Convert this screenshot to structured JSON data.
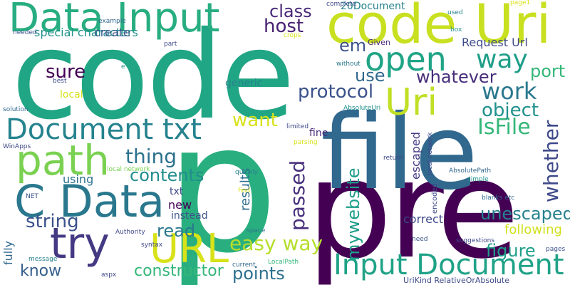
{
  "words": [
    {
      "text": "code",
      "color": "#21a685"
    },
    {
      "text": "p",
      "color": "#29af7f"
    },
    {
      "text": "pre",
      "color": "#440154"
    },
    {
      "text": "file",
      "color": "#31688e"
    },
    {
      "text": "code Uri",
      "color": "#c8e020"
    },
    {
      "text": "Data Input",
      "color": "#27ad81"
    },
    {
      "text": "C Data",
      "color": "#2a788e"
    },
    {
      "text": "Input Document",
      "color": "#1fa287"
    },
    {
      "text": "Document txt",
      "color": "#25838e"
    },
    {
      "text": "path",
      "color": "#7ad151"
    },
    {
      "text": "try",
      "color": "#443a83"
    },
    {
      "text": "URL",
      "color": "#d8e219"
    },
    {
      "text": "open",
      "color": "#20a486"
    },
    {
      "text": "Uri",
      "color": "#c0df25"
    },
    {
      "text": "way",
      "color": "#1f9e89"
    },
    {
      "text": "protocol",
      "color": "#3b528b"
    },
    {
      "text": "work",
      "color": "#2a788e"
    },
    {
      "text": "object",
      "color": "#21918c"
    },
    {
      "text": "whatever",
      "color": "#472d7b"
    },
    {
      "text": "port",
      "color": "#35b779"
    },
    {
      "text": "use",
      "color": "#31688e"
    },
    {
      "text": "sure",
      "color": "#440154"
    },
    {
      "text": "em",
      "color": "#3b528b"
    },
    {
      "text": "host",
      "color": "#482173"
    },
    {
      "text": "class",
      "color": "#482878"
    },
    {
      "text": "thing",
      "color": "#2c728e"
    },
    {
      "text": "want",
      "color": "#d8e219"
    },
    {
      "text": "IsFile",
      "color": "#35b779"
    },
    {
      "text": "contents",
      "color": "#228d8d"
    },
    {
      "text": "unescaped",
      "color": "#472f7d"
    },
    {
      "text": "following",
      "color": "#3e4989"
    },
    {
      "text": "figure",
      "color": "#26828e"
    },
    {
      "text": "easy way",
      "color": "#d0e11c"
    },
    {
      "text": "read",
      "color": "#1f9e89"
    },
    {
      "text": "string",
      "color": "#b5de2b"
    },
    {
      "text": "know",
      "color": "#2a788e"
    },
    {
      "text": "constructor",
      "color": "#3b528b"
    },
    {
      "text": "points",
      "color": "#355f8d"
    },
    {
      "text": "passed",
      "color": "#35b779"
    },
    {
      "text": "whether",
      "color": "#2d708e"
    },
    {
      "text": "mywebsite",
      "color": "#1f9e89"
    },
    {
      "text": "escaped",
      "color": "#443b84"
    },
    {
      "text": "fully",
      "color": "#3e4989"
    },
    {
      "text": "results",
      "color": "#21918c"
    },
    {
      "text": "encoded",
      "color": "#3b528b"
    },
    {
      "text": "local network",
      "color": "#3e4a89"
    },
    {
      "text": "correct",
      "color": "#26828e"
    },
    {
      "text": "special characters",
      "color": "#482475"
    },
    {
      "text": "create",
      "color": "#d8e219"
    },
    {
      "text": "Request Url",
      "color": "#31688e"
    },
    {
      "text": "20Document",
      "color": "#2c728e"
    },
    {
      "text": "Given",
      "color": "#3e4989"
    },
    {
      "text": "local",
      "color": "#440154"
    },
    {
      "text": "using",
      "color": "#3b528b"
    },
    {
      "text": "txt",
      "color": "#2e6e8e"
    },
    {
      "text": "new",
      "color": "#482878"
    },
    {
      "text": "instead",
      "color": "#31688e"
    },
    {
      "text": "fine",
      "color": "#3e4989"
    },
    {
      "text": "example",
      "color": "#26828e"
    },
    {
      "text": "complete",
      "color": "#d8e219"
    },
    {
      "text": "used",
      "color": "#21918c"
    },
    {
      "text": "page1",
      "color": "#3b528b"
    },
    {
      "text": "box",
      "color": "#d8e219"
    },
    {
      "text": "needed",
      "color": "#3e4989"
    },
    {
      "text": "crops",
      "color": "#2a788e"
    },
    {
      "text": "part",
      "color": "#21918c"
    },
    {
      "text": "without",
      "color": "#3e4989"
    },
    {
      "text": "e",
      "color": "#26828e"
    },
    {
      "text": "best",
      "color": "#31688e"
    },
    {
      "text": "generic",
      "color": "#21918c"
    },
    {
      "text": "solution",
      "color": "#3e4989"
    },
    {
      "text": "AbsoluteUri",
      "color": "#3e4989"
    },
    {
      "text": "limited",
      "color": "#d8e219"
    },
    {
      "text": "WinApps",
      "color": "#7ad151"
    },
    {
      "text": "parsing",
      "color": "#26828e"
    },
    {
      "text": "quickly",
      "color": "#d8e219"
    },
    {
      "text": "find",
      "color": "#3e4989"
    },
    {
      "text": "return",
      "color": "#31688e"
    },
    {
      "text": "AbsolutePath",
      "color": "#3e4989"
    },
    {
      "text": "simple",
      "color": "#21918c"
    },
    {
      "text": "blanks etc",
      "color": "#31688e"
    },
    {
      "text": "NET",
      "color": "#3b528b"
    },
    {
      "text": "Authority",
      "color": "#3e4989"
    },
    {
      "text": "space",
      "color": "#2a788e"
    },
    {
      "text": "need",
      "color": "#3b528b"
    },
    {
      "text": "suggestions",
      "color": "#3e4989"
    },
    {
      "text": "message",
      "color": "#26828e"
    },
    {
      "text": "syntax",
      "color": "#3e4989"
    },
    {
      "text": "LocalPath",
      "color": "#35b779"
    },
    {
      "text": "aspx",
      "color": "#3e4989"
    },
    {
      "text": "current",
      "color": "#31688e"
    },
    {
      "text": "UriKind RelativeOrAbsolute",
      "color": "#3e4989"
    },
    {
      "text": "pages",
      "color": "#3b528b"
    }
  ]
}
